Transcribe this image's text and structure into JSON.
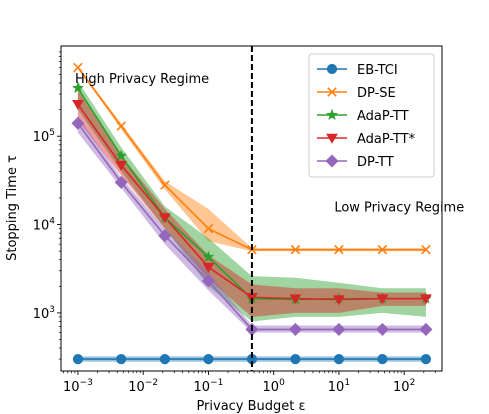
{
  "chart_data": {
    "type": "line",
    "title": "",
    "xlabel": "Privacy Budget ε",
    "ylabel": "Stopping Time τ",
    "xscale": "log",
    "yscale": "log",
    "xlim": [
      0.00055,
      380
    ],
    "ylim": [
      220,
      1050000
    ],
    "x": [
      0.001,
      0.0046,
      0.0215,
      0.1,
      0.464,
      2.154,
      10,
      46.4,
      215.4
    ],
    "x_ticks": [
      {
        "value": 0.001,
        "base": "10",
        "exp": "−3"
      },
      {
        "value": 0.01,
        "base": "10",
        "exp": "−2"
      },
      {
        "value": 0.1,
        "base": "10",
        "exp": "−1"
      },
      {
        "value": 1,
        "base": "10",
        "exp": "0"
      },
      {
        "value": 10,
        "base": "10",
        "exp": "1"
      },
      {
        "value": 100,
        "base": "10",
        "exp": "2"
      }
    ],
    "y_ticks": [
      {
        "value": 1000,
        "base": "10",
        "exp": "3"
      },
      {
        "value": 10000,
        "base": "10",
        "exp": "4"
      },
      {
        "value": 100000,
        "base": "10",
        "exp": "5"
      }
    ],
    "vline": {
      "x": 0.464,
      "style": "dashed"
    },
    "annotations": [
      {
        "text": "High Privacy Regime",
        "x": 0.0009,
        "y": 400000
      },
      {
        "text": "Low Privacy Regime",
        "x": 8.5,
        "y": 14000
      }
    ],
    "legend": "top-right",
    "series": [
      {
        "name": "EB-TCI",
        "color": "#1f77b4",
        "marker": "circle",
        "values": [
          300,
          300,
          300,
          300,
          300,
          300,
          300,
          300,
          300
        ],
        "lower": [
          280,
          280,
          280,
          280,
          280,
          280,
          280,
          280,
          280
        ],
        "upper": [
          322,
          322,
          322,
          322,
          322,
          322,
          322,
          322,
          322
        ]
      },
      {
        "name": "DP-SE",
        "color": "#ff7f0e",
        "marker": "x",
        "values": [
          600000,
          130000,
          28000,
          9000,
          5200,
          5200,
          5200,
          5200,
          5200
        ],
        "lower": [
          580000,
          120000,
          25000,
          6500,
          5000,
          5000,
          5000,
          5000,
          5000
        ],
        "upper": [
          620000,
          140000,
          31000,
          15000,
          5400,
          5400,
          5400,
          5400,
          5400
        ]
      },
      {
        "name": "AdaP-TT",
        "color": "#2ca02c",
        "marker": "star",
        "values": [
          350000,
          60000,
          12000,
          4300,
          1450,
          1420,
          1450,
          1450,
          1450
        ],
        "lower": [
          200000,
          40000,
          9000,
          2000,
          800,
          900,
          900,
          1000,
          900
        ],
        "upper": [
          420000,
          75000,
          16000,
          7000,
          2600,
          2500,
          2200,
          1900,
          1900
        ]
      },
      {
        "name": "AdaP-TT*",
        "color": "#d62728",
        "marker": "triangle-down",
        "values": [
          230000,
          47000,
          12000,
          3300,
          1500,
          1450,
          1420,
          1450,
          1450
        ],
        "lower": [
          150000,
          36000,
          9000,
          2400,
          900,
          1000,
          1000,
          1200,
          1200
        ],
        "upper": [
          330000,
          60000,
          15000,
          4500,
          2100,
          1900,
          1900,
          1700,
          1700
        ]
      },
      {
        "name": "DP-TT",
        "color": "#9467bd",
        "marker": "diamond",
        "values": [
          140000,
          30000,
          7500,
          2300,
          650,
          650,
          650,
          650,
          650
        ],
        "lower": [
          110000,
          26000,
          6000,
          1800,
          600,
          600,
          600,
          600,
          600
        ],
        "upper": [
          170000,
          34000,
          9000,
          2900,
          720,
          720,
          720,
          720,
          720
        ]
      }
    ]
  }
}
